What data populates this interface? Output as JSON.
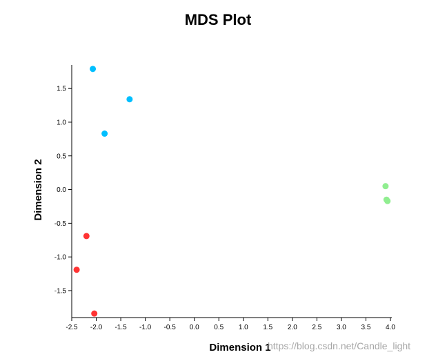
{
  "watermark": "https://blog.csdn.net/Candle_light",
  "chart_data": {
    "type": "scatter",
    "title": "MDS Plot",
    "xlabel": "Dimension 1",
    "ylabel": "Dimension 2",
    "xlim": [
      -2.5,
      4.0
    ],
    "ylim": [
      -1.9,
      1.85
    ],
    "xticks": [
      "-2.5",
      "-2.0",
      "-1.5",
      "-1.0",
      "-0.5",
      "0.0",
      "0.5",
      "1.0",
      "1.5",
      "2.0",
      "2.5",
      "3.0",
      "3.5",
      "4.0"
    ],
    "yticks": [
      "1.5",
      "1.0",
      "0.5",
      "0.0",
      "-0.5",
      "-1.0",
      "-1.5"
    ],
    "grid": false,
    "series": [
      {
        "color": "#00bfff",
        "points": [
          [
            -2.07,
            1.79
          ],
          [
            -1.32,
            1.34
          ],
          [
            -1.83,
            0.83
          ]
        ]
      },
      {
        "color": "#90ee90",
        "points": [
          [
            3.9,
            0.05
          ],
          [
            3.92,
            -0.15
          ],
          [
            3.94,
            -0.17
          ]
        ]
      },
      {
        "color": "#ff3333",
        "points": [
          [
            -2.2,
            -0.69
          ],
          [
            -2.4,
            -1.19
          ],
          [
            -2.04,
            -1.84
          ]
        ]
      }
    ]
  }
}
